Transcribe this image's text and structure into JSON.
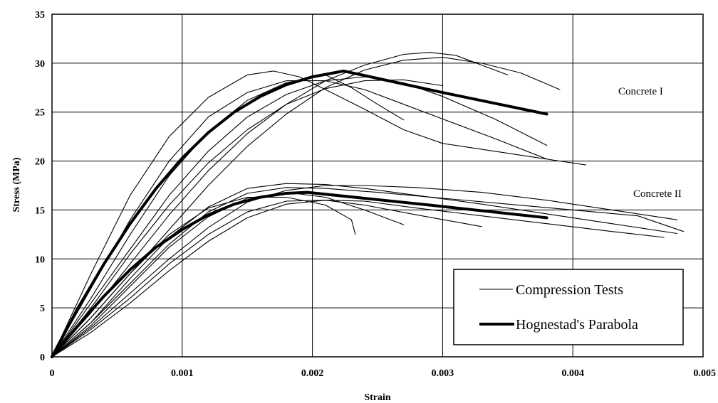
{
  "chart_data": {
    "type": "line",
    "xlabel": "Strain",
    "ylabel": "Stress (MPa)",
    "xlim": [
      0,
      0.005
    ],
    "ylim": [
      0,
      35
    ],
    "x_ticks": [
      "0",
      "0.001",
      "0.002",
      "0.003",
      "0.004",
      "0.005"
    ],
    "y_ticks": [
      "0",
      "5",
      "10",
      "15",
      "20",
      "25",
      "30",
      "35"
    ],
    "grid": true,
    "legend": {
      "position": "bottom-right",
      "entries": [
        {
          "label": "Compression Tests",
          "style": "thin"
        },
        {
          "label": "Hognestad's  Parabola",
          "style": "thick"
        }
      ]
    },
    "annotations": [
      {
        "text": "Concrete I",
        "x": 0.00437,
        "y": 27.0
      },
      {
        "text": "Concrete II",
        "x": 0.00447,
        "y": 16.8
      }
    ],
    "series": [
      {
        "group": "Hognestad's Parabola",
        "points": [
          [
            0,
            0
          ],
          [
            0.0002,
            5.0
          ],
          [
            0.0004,
            9.5
          ],
          [
            0.0006,
            13.6
          ],
          [
            0.0008,
            17.2
          ],
          [
            0.001,
            20.3
          ],
          [
            0.0012,
            22.9
          ],
          [
            0.0014,
            25.0
          ],
          [
            0.0016,
            26.6
          ],
          [
            0.0018,
            27.8
          ],
          [
            0.002,
            28.6
          ],
          [
            0.00224,
            29.2
          ],
          [
            0.003,
            27.0
          ],
          [
            0.0038,
            24.8
          ]
        ]
      },
      {
        "group": "Hognestad's Parabola",
        "points": [
          [
            0,
            0
          ],
          [
            0.0002,
            3.2
          ],
          [
            0.0004,
            6.2
          ],
          [
            0.0006,
            8.9
          ],
          [
            0.0008,
            11.2
          ],
          [
            0.001,
            13.0
          ],
          [
            0.0012,
            14.5
          ],
          [
            0.0014,
            15.6
          ],
          [
            0.0016,
            16.3
          ],
          [
            0.0018,
            16.7
          ],
          [
            0.00196,
            16.8
          ],
          [
            0.0029,
            15.5
          ],
          [
            0.0038,
            14.2
          ]
        ]
      },
      {
        "group": "Compression Tests",
        "points": [
          [
            0,
            0
          ],
          [
            0.0003,
            8.5
          ],
          [
            0.0006,
            16.5
          ],
          [
            0.0009,
            22.5
          ],
          [
            0.0012,
            26.5
          ],
          [
            0.0015,
            28.8
          ],
          [
            0.0017,
            29.2
          ],
          [
            0.0019,
            28.6
          ],
          [
            0.0021,
            27.3
          ],
          [
            0.0024,
            25.3
          ],
          [
            0.0027,
            23.2
          ],
          [
            0.003,
            21.8
          ],
          [
            0.0035,
            20.8
          ],
          [
            0.0041,
            19.6
          ]
        ]
      },
      {
        "group": "Compression Tests",
        "points": [
          [
            0,
            0
          ],
          [
            0.0003,
            6.0
          ],
          [
            0.0006,
            12.5
          ],
          [
            0.0009,
            18.5
          ],
          [
            0.0012,
            23.0
          ],
          [
            0.0015,
            26.2
          ],
          [
            0.0018,
            28.0
          ],
          [
            0.0021,
            28.8
          ],
          [
            0.0023,
            27.5
          ],
          [
            0.0025,
            25.8
          ],
          [
            0.0027,
            24.2
          ]
        ]
      },
      {
        "group": "Compression Tests",
        "points": [
          [
            0,
            0
          ],
          [
            0.0003,
            5.5
          ],
          [
            0.0006,
            11.0
          ],
          [
            0.0009,
            16.5
          ],
          [
            0.0012,
            21.0
          ],
          [
            0.0015,
            24.5
          ],
          [
            0.0018,
            26.8
          ],
          [
            0.0021,
            28.2
          ],
          [
            0.0024,
            28.6
          ],
          [
            0.0027,
            28.0
          ],
          [
            0.003,
            26.6
          ],
          [
            0.0034,
            24.3
          ],
          [
            0.0038,
            21.6
          ]
        ]
      },
      {
        "group": "Compression Tests",
        "points": [
          [
            0,
            0
          ],
          [
            0.0003,
            5.0
          ],
          [
            0.0006,
            10.5
          ],
          [
            0.0009,
            15.5
          ],
          [
            0.0012,
            19.8
          ],
          [
            0.0015,
            23.2
          ],
          [
            0.0018,
            25.8
          ],
          [
            0.0021,
            27.4
          ],
          [
            0.0024,
            28.2
          ],
          [
            0.0027,
            28.3
          ],
          [
            0.003,
            27.7
          ]
        ]
      },
      {
        "group": "Compression Tests",
        "points": [
          [
            0,
            0
          ],
          [
            0.0003,
            4.0
          ],
          [
            0.0006,
            8.5
          ],
          [
            0.0009,
            13.0
          ],
          [
            0.0012,
            17.5
          ],
          [
            0.0015,
            21.5
          ],
          [
            0.0018,
            24.8
          ],
          [
            0.0021,
            27.5
          ],
          [
            0.0024,
            29.3
          ],
          [
            0.0027,
            30.3
          ],
          [
            0.003,
            30.6
          ],
          [
            0.0033,
            30.0
          ],
          [
            0.0036,
            29.0
          ],
          [
            0.0039,
            27.3
          ]
        ]
      },
      {
        "group": "Compression Tests",
        "points": [
          [
            0,
            0
          ],
          [
            0.0003,
            4.5
          ],
          [
            0.0006,
            9.5
          ],
          [
            0.0009,
            14.5
          ],
          [
            0.0012,
            19.0
          ],
          [
            0.0015,
            22.8
          ],
          [
            0.0018,
            25.8
          ],
          [
            0.0021,
            28.2
          ],
          [
            0.0024,
            29.8
          ],
          [
            0.0027,
            30.9
          ],
          [
            0.0029,
            31.1
          ],
          [
            0.0031,
            30.8
          ],
          [
            0.0033,
            29.8
          ],
          [
            0.0035,
            28.8
          ]
        ]
      },
      {
        "group": "Compression Tests",
        "points": [
          [
            0,
            0
          ],
          [
            0.0003,
            7.0
          ],
          [
            0.0006,
            14.0
          ],
          [
            0.0009,
            20.0
          ],
          [
            0.0012,
            24.5
          ],
          [
            0.0015,
            27.0
          ],
          [
            0.0018,
            28.2
          ],
          [
            0.0021,
            28.2
          ],
          [
            0.0024,
            27.3
          ],
          [
            0.0027,
            25.8
          ],
          [
            0.003,
            24.3
          ],
          [
            0.0034,
            22.3
          ],
          [
            0.0038,
            20.2
          ]
        ]
      },
      {
        "group": "Compression Tests",
        "points": [
          [
            0,
            0
          ],
          [
            0.0003,
            3.5
          ],
          [
            0.0006,
            8.0
          ],
          [
            0.0009,
            12.2
          ],
          [
            0.0012,
            15.3
          ],
          [
            0.0015,
            17.2
          ],
          [
            0.0018,
            17.7
          ],
          [
            0.0021,
            17.6
          ],
          [
            0.0024,
            17.2
          ],
          [
            0.0028,
            16.5
          ],
          [
            0.0033,
            15.6
          ],
          [
            0.0038,
            14.6
          ],
          [
            0.0043,
            13.6
          ],
          [
            0.0048,
            12.6
          ]
        ]
      },
      {
        "group": "Compression Tests",
        "points": [
          [
            0,
            0
          ],
          [
            0.0003,
            3.0
          ],
          [
            0.0006,
            6.5
          ],
          [
            0.0009,
            10.0
          ],
          [
            0.0012,
            13.2
          ],
          [
            0.0015,
            15.8
          ],
          [
            0.0018,
            17.0
          ],
          [
            0.0021,
            17.5
          ],
          [
            0.0024,
            17.5
          ],
          [
            0.0028,
            17.3
          ],
          [
            0.0033,
            16.8
          ],
          [
            0.0038,
            16.0
          ],
          [
            0.0043,
            15.0
          ],
          [
            0.0048,
            14.0
          ]
        ]
      },
      {
        "group": "Compression Tests",
        "points": [
          [
            0,
            0
          ],
          [
            0.0003,
            2.5
          ],
          [
            0.0006,
            5.5
          ],
          [
            0.0009,
            8.8
          ],
          [
            0.0012,
            11.8
          ],
          [
            0.0015,
            14.2
          ],
          [
            0.0018,
            15.6
          ],
          [
            0.0021,
            16.0
          ],
          [
            0.0024,
            15.9
          ],
          [
            0.0028,
            15.2
          ],
          [
            0.0033,
            14.4
          ],
          [
            0.0038,
            13.6
          ],
          [
            0.0043,
            12.8
          ],
          [
            0.0047,
            12.2
          ]
        ]
      },
      {
        "group": "Compression Tests",
        "points": [
          [
            0,
            0
          ],
          [
            0.0003,
            4.0
          ],
          [
            0.0006,
            8.5
          ],
          [
            0.0009,
            12.5
          ],
          [
            0.0012,
            15.2
          ],
          [
            0.0015,
            16.3
          ],
          [
            0.0018,
            16.3
          ],
          [
            0.0021,
            15.5
          ],
          [
            0.0023,
            14.0
          ],
          [
            0.00233,
            12.5
          ]
        ]
      },
      {
        "group": "Compression Tests",
        "points": [
          [
            0,
            0
          ],
          [
            0.0003,
            3.2
          ],
          [
            0.0006,
            7.2
          ],
          [
            0.0009,
            11.2
          ],
          [
            0.0012,
            14.3
          ],
          [
            0.0015,
            16.2
          ],
          [
            0.0018,
            16.8
          ],
          [
            0.0021,
            16.3
          ],
          [
            0.0024,
            15.0
          ],
          [
            0.0027,
            13.5
          ]
        ]
      },
      {
        "group": "Compression Tests",
        "points": [
          [
            0,
            0
          ],
          [
            0.0003,
            2.8
          ],
          [
            0.0006,
            6.0
          ],
          [
            0.0009,
            9.5
          ],
          [
            0.0012,
            12.5
          ],
          [
            0.0015,
            14.8
          ],
          [
            0.0018,
            15.9
          ],
          [
            0.0021,
            16.0
          ],
          [
            0.0024,
            15.5
          ],
          [
            0.0028,
            14.5
          ],
          [
            0.0033,
            13.3
          ]
        ]
      },
      {
        "group": "Compression Tests",
        "points": [
          [
            0,
            0
          ],
          [
            0.0003,
            3.5
          ],
          [
            0.0006,
            7.5
          ],
          [
            0.0009,
            11.5
          ],
          [
            0.0012,
            14.8
          ],
          [
            0.0015,
            16.7
          ],
          [
            0.0018,
            17.3
          ],
          [
            0.0021,
            17.2
          ],
          [
            0.0025,
            16.8
          ],
          [
            0.003,
            16.2
          ],
          [
            0.0035,
            15.6
          ],
          [
            0.004,
            15.0
          ],
          [
            0.0045,
            14.4
          ],
          [
            0.00485,
            12.8
          ]
        ]
      }
    ]
  }
}
